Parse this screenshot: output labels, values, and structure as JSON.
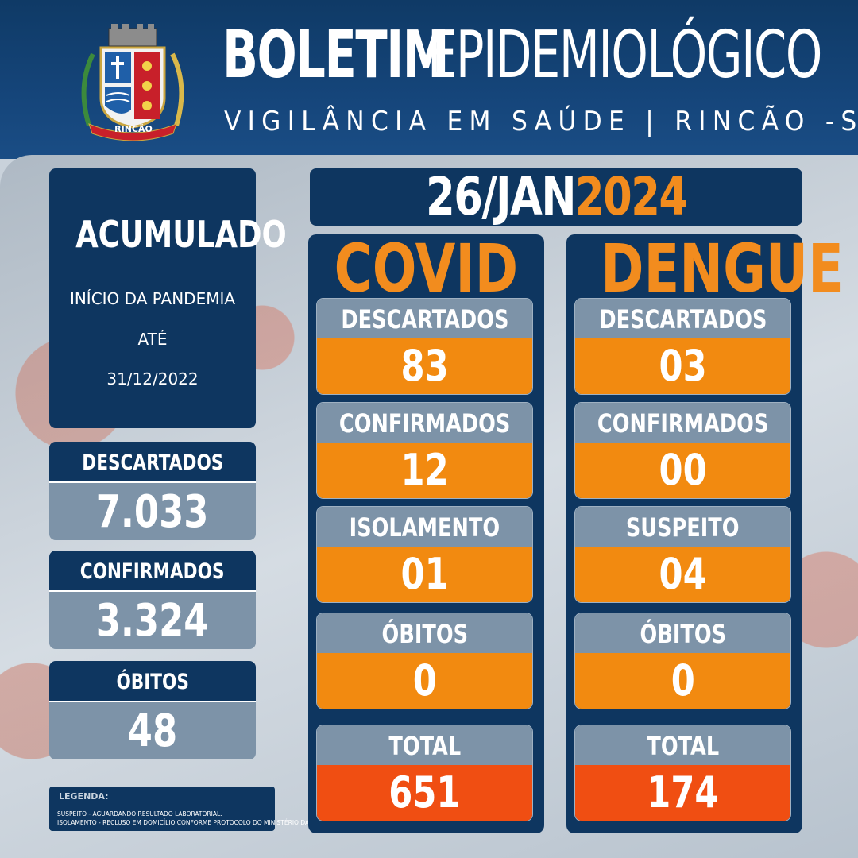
{
  "header": {
    "title_bold": "BOLETIM",
    "title_light": "EPIDEMIOLÓGICO",
    "subtitle": "VIGILÂNCIA EM SAÚDE | RINCÃO -SP",
    "crest_text": "RINCÃO"
  },
  "accumulated": {
    "title": "ACUMULADO",
    "line1": "INÍCIO DA PANDEMIA",
    "line2": "ATÉ",
    "line3": "31/12/2022",
    "stats": [
      {
        "label": "DESCARTADOS",
        "value": "7.033"
      },
      {
        "label": "CONFIRMADOS",
        "value": "3.324"
      },
      {
        "label": "ÓBITOS",
        "value": "48"
      }
    ]
  },
  "date": {
    "day_month": "26/JAN",
    "year": "2024"
  },
  "covid": {
    "title": "COVID",
    "cards": [
      {
        "label": "DESCARTADOS",
        "value": "83"
      },
      {
        "label": "CONFIRMADOS",
        "value": "12"
      },
      {
        "label": "ISOLAMENTO",
        "value": "01"
      },
      {
        "label": "ÓBITOS",
        "value": "0"
      }
    ],
    "total_label": "TOTAL",
    "total_value": "651"
  },
  "dengue": {
    "title": "DENGUE",
    "cards": [
      {
        "label": "DESCARTADOS",
        "value": "03"
      },
      {
        "label": "CONFIRMADOS",
        "value": "00"
      },
      {
        "label": "SUSPEITO",
        "value": "04"
      },
      {
        "label": "ÓBITOS",
        "value": "0"
      }
    ],
    "total_label": "TOTAL",
    "total_value": "174"
  },
  "legend": {
    "title": "LEGENDA:",
    "line1": "SUSPEITO - AGUARDANDO RESULTADO LABORATORIAL.",
    "line2": "ISOLAMENTO - RECLUSO EM DOMICÍLIO CONFORME PROTOCOLO DO MINISTÉRIO DA SAÚDE"
  },
  "colors": {
    "navy": "#0e3660",
    "orange": "#f28a10",
    "total_orange": "#f04e12",
    "slate": "#7d93a8"
  }
}
